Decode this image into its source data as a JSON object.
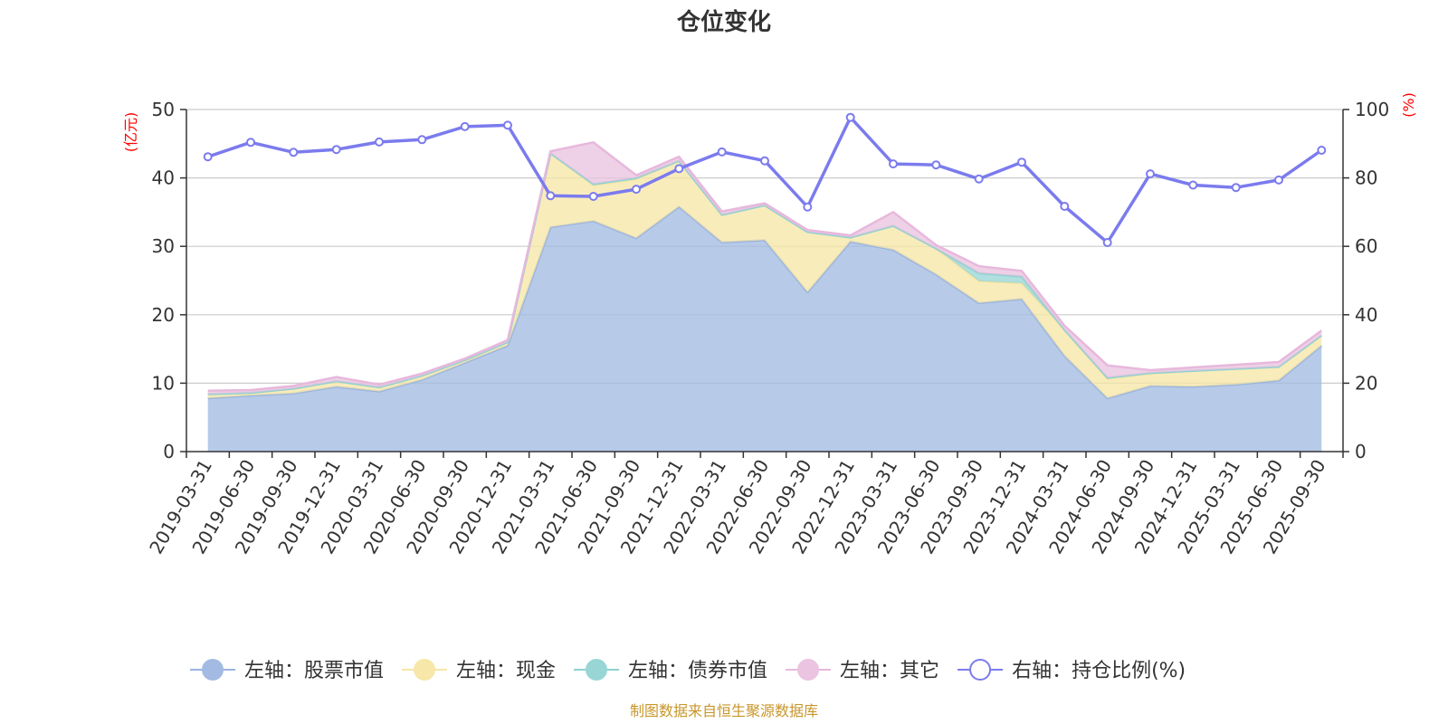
{
  "chart_data": {
    "type": "area",
    "title": "仓位变化",
    "y_left_label": "(亿元)",
    "y_right_label": "(%)",
    "y_left_lim": [
      0,
      50
    ],
    "y_left_ticks": [
      0,
      10,
      20,
      30,
      40,
      50
    ],
    "y_right_lim": [
      0,
      100
    ],
    "y_right_ticks": [
      0,
      20,
      40,
      60,
      80,
      100
    ],
    "grid": true,
    "legend_position": "bottom",
    "x": [
      "2019-03-31",
      "2019-06-30",
      "2019-09-30",
      "2019-12-31",
      "2020-03-31",
      "2020-06-30",
      "2020-09-30",
      "2020-12-31",
      "2021-03-31",
      "2021-06-30",
      "2021-09-30",
      "2021-12-31",
      "2022-03-31",
      "2022-06-30",
      "2022-09-30",
      "2022-12-31",
      "2023-03-31",
      "2023-06-30",
      "2023-09-30",
      "2023-12-31",
      "2024-03-31",
      "2024-06-30",
      "2024-09-30",
      "2024-12-31",
      "2025-03-31",
      "2025-06-30",
      "2025-09-30"
    ],
    "stacked_series": [
      {
        "name": "左轴：股票市值",
        "color": "#a3bbe2",
        "line_color": "#9ab4de",
        "values": [
          7.8,
          8.2,
          8.5,
          9.5,
          8.8,
          10.5,
          13.0,
          15.5,
          32.8,
          33.7,
          31.2,
          35.8,
          30.6,
          30.9,
          23.3,
          30.7,
          29.5,
          25.9,
          21.7,
          22.3,
          14.0,
          7.8,
          9.6,
          9.5,
          9.8,
          10.4,
          15.5
        ]
      },
      {
        "name": "左轴：现金",
        "color": "#f7e7a8",
        "line_color": "#f6e6a6",
        "values": [
          0.6,
          0.4,
          0.7,
          0.8,
          0.6,
          0.6,
          0.4,
          0.5,
          10.8,
          5.2,
          8.6,
          6.7,
          4.0,
          5.1,
          8.8,
          0.6,
          3.5,
          3.8,
          3.2,
          2.3,
          3.8,
          2.8,
          1.8,
          2.3,
          2.3,
          2.0,
          1.5
        ]
      },
      {
        "name": "左轴：债券市值",
        "color": "#98d6d6",
        "line_color": "#8fd1d1",
        "values": [
          0,
          0,
          0,
          0,
          0,
          0,
          0,
          0,
          0,
          0.2,
          0.2,
          0,
          0,
          0,
          0,
          0,
          0,
          0,
          1.2,
          1.0,
          0,
          0.2,
          0.1,
          0,
          0,
          0,
          0
        ]
      },
      {
        "name": "左轴：其它",
        "color": "#eac4e0",
        "line_color": "#e7b8dc",
        "values": [
          0.5,
          0.4,
          0.4,
          0.6,
          0.4,
          0.3,
          0.2,
          0.3,
          0.3,
          6.1,
          0.4,
          0.6,
          0.5,
          0.3,
          0.3,
          0.3,
          2.0,
          0.5,
          1.0,
          0.8,
          0.6,
          1.8,
          0.4,
          0.5,
          0.6,
          0.7,
          0.7
        ]
      }
    ],
    "line_series": {
      "name": "右轴：持仓比例(%)",
      "color": "#7b7bee",
      "axis": "right",
      "values": [
        86.2,
        90.4,
        87.5,
        88.3,
        90.5,
        91.2,
        95.0,
        95.4,
        74.8,
        74.6,
        76.7,
        82.7,
        87.6,
        85.0,
        71.5,
        97.7,
        84.1,
        83.8,
        79.7,
        84.6,
        71.7,
        61.1,
        81.2,
        77.9,
        77.2,
        79.4,
        88.1
      ]
    },
    "source": "制图数据来自恒生聚源数据库"
  }
}
